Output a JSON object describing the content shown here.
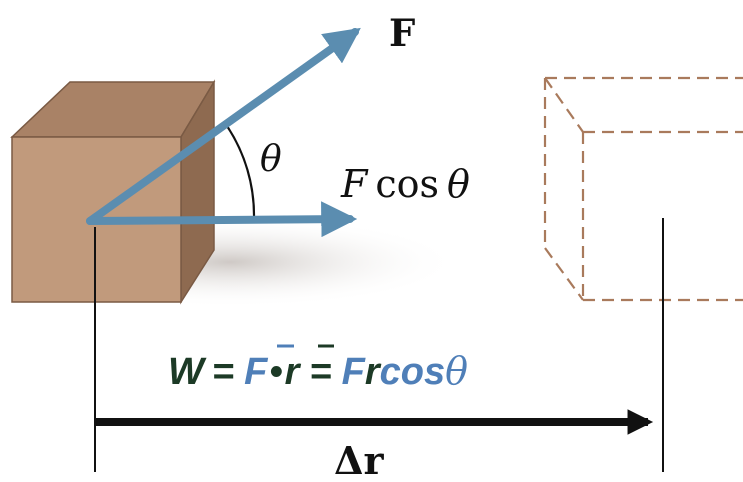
{
  "labels": {
    "force": "F",
    "theta": "θ",
    "component_F": "F",
    "component_cos": "cos",
    "component_theta": "θ",
    "displacement_delta": "Δ",
    "displacement_r": "r"
  },
  "formula": {
    "W": "W",
    "eq1": "=",
    "F_vec": "F",
    "dot": "•",
    "r_vec": "r",
    "eq2": "=",
    "F": "F",
    "r": "r",
    "cos": "cos",
    "theta": "θ"
  },
  "colors": {
    "arrow": "#5b8db0",
    "box_front": "#c19a7c",
    "box_top": "#a98266",
    "box_side": "#8e6a50",
    "box_edge": "#7a5a44",
    "ghost": "#a97a5c",
    "formula_dark": "#1c3a26",
    "formula_blue": "#4f7fb8",
    "line": "#111111"
  }
}
